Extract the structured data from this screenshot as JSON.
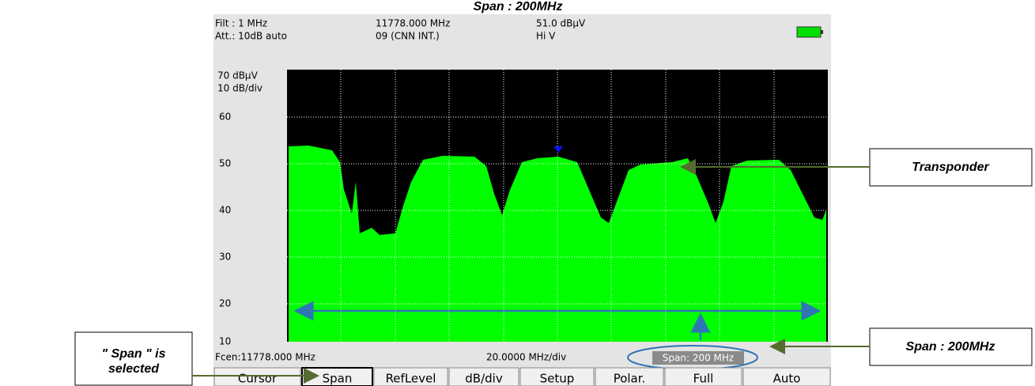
{
  "title": "Span : 200MHz",
  "header": {
    "filter": "Filt : 1 MHz",
    "attenuation": "Att.: 10dB auto",
    "frequency": "11778.000 MHz",
    "channel": "09 (CNN INT.)",
    "level": "51.0 dBµV",
    "polarization": "Hi V"
  },
  "y_axis": {
    "reference": "70 dBµV",
    "scale": "10 dB/div",
    "labels": [
      "60",
      "50",
      "40",
      "30",
      "20",
      "10"
    ]
  },
  "footer": {
    "center": "Fcen:11778.000  MHz",
    "per_div": "20.0000 MHz/div",
    "span": "Span: 200 MHz"
  },
  "softkeys": [
    "Cursor",
    "Span",
    "RefLevel",
    "dB/div",
    "Setup",
    "Polar.",
    "Full",
    "Auto"
  ],
  "annotations": {
    "transponder": "Transponder",
    "span": "Span : 200MHz",
    "selected": [
      "\" Span \" is",
      "selected"
    ]
  }
}
